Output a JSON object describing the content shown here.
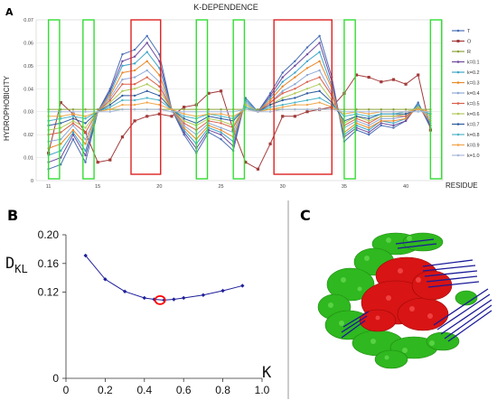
{
  "panels": {
    "a_letter": "A",
    "b_letter": "B",
    "c_letter": "C"
  },
  "colors": {
    "green_box": "#33dd33",
    "red_box": "#dd2222",
    "b_curve": "#1f1f9a",
    "b_marker": "#ff0000",
    "c_green": "#33bb22",
    "c_red": "#dd1111",
    "c_blue": "#1a1a99"
  },
  "chart_data": [
    {
      "type": "line",
      "title": "K-DEPENDENCE",
      "xlabel": "RESIDUE",
      "ylabel": "HYDROPHOBICITY",
      "xlim": [
        10,
        43
      ],
      "ylim": [
        0,
        0.07
      ],
      "y_ticks": [
        "0",
        "0.01",
        "0.02",
        "0.03",
        "0.04",
        "0.05",
        "0.06",
        "0.07"
      ],
      "x_ticks": [
        "11",
        "15",
        "20",
        "25",
        "30",
        "35",
        "40"
      ],
      "x_tick_values": [
        11,
        15,
        20,
        25,
        30,
        35,
        40
      ],
      "y_tick_values": [
        0,
        0.01,
        0.02,
        0.03,
        0.04,
        0.05,
        0.06,
        0.07
      ],
      "green_boxes": [
        [
          11,
          11.9
        ],
        [
          13.8,
          14.7
        ],
        [
          23,
          23.9
        ],
        [
          26,
          26.9
        ],
        [
          35,
          35.9
        ],
        [
          42,
          42.9
        ]
      ],
      "red_boxes": [
        [
          17.7,
          20.1
        ],
        [
          29.3,
          34
        ]
      ],
      "x": [
        11,
        12,
        13,
        14,
        15,
        16,
        17,
        18,
        19,
        20,
        21,
        22,
        23,
        24,
        25,
        26,
        27,
        28,
        29,
        30,
        31,
        32,
        33,
        34,
        35,
        36,
        37,
        38,
        39,
        40,
        41,
        42
      ],
      "series": [
        {
          "name": "T",
          "color": "#4a6fb5",
          "values": [
            0.005,
            0.007,
            0.018,
            0.008,
            0.03,
            0.04,
            0.055,
            0.057,
            0.063,
            0.055,
            0.031,
            0.02,
            0.012,
            0.021,
            0.018,
            0.013,
            0.036,
            0.03,
            0.038,
            0.047,
            0.052,
            0.058,
            0.063,
            0.045,
            0.017,
            0.022,
            0.02,
            0.024,
            0.023,
            0.026,
            0.034,
            0.023
          ]
        },
        {
          "name": "O",
          "color": "#a33b3b",
          "values": [
            0.012,
            0.034,
            0.029,
            0.021,
            0.008,
            0.009,
            0.019,
            0.026,
            0.028,
            0.029,
            0.028,
            0.032,
            0.033,
            0.038,
            0.039,
            0.022,
            0.008,
            0.005,
            0.016,
            0.028,
            0.028,
            0.03,
            0.031,
            0.032,
            0.038,
            0.046,
            0.045,
            0.043,
            0.044,
            0.042,
            0.046,
            0.022
          ]
        },
        {
          "name": "R",
          "color": "#8aa33a",
          "values": [
            0.031,
            0.031,
            0.031,
            0.031,
            0.031,
            0.031,
            0.031,
            0.031,
            0.031,
            0.031,
            0.031,
            0.031,
            0.031,
            0.031,
            0.031,
            0.031,
            0.031,
            0.031,
            0.031,
            0.031,
            0.031,
            0.031,
            0.031,
            0.031,
            0.031,
            0.031,
            0.031,
            0.031,
            0.031,
            0.031,
            0.031,
            0.031
          ]
        },
        {
          "name": "k=0.1",
          "color": "#6e4a9e",
          "values": [
            0.008,
            0.01,
            0.02,
            0.011,
            0.03,
            0.039,
            0.052,
            0.054,
            0.06,
            0.052,
            0.031,
            0.021,
            0.014,
            0.022,
            0.02,
            0.015,
            0.035,
            0.03,
            0.037,
            0.045,
            0.05,
            0.055,
            0.06,
            0.043,
            0.019,
            0.023,
            0.021,
            0.025,
            0.024,
            0.026,
            0.033,
            0.024
          ]
        },
        {
          "name": "k=0.2",
          "color": "#3fa6c7",
          "values": [
            0.011,
            0.013,
            0.021,
            0.013,
            0.03,
            0.038,
            0.05,
            0.051,
            0.056,
            0.049,
            0.031,
            0.022,
            0.016,
            0.023,
            0.021,
            0.017,
            0.035,
            0.03,
            0.036,
            0.043,
            0.047,
            0.052,
            0.056,
            0.041,
            0.02,
            0.024,
            0.022,
            0.026,
            0.025,
            0.027,
            0.033,
            0.025
          ]
        },
        {
          "name": "k=0.3",
          "color": "#e8892a",
          "values": [
            0.014,
            0.016,
            0.022,
            0.016,
            0.03,
            0.037,
            0.047,
            0.048,
            0.052,
            0.046,
            0.031,
            0.023,
            0.018,
            0.024,
            0.022,
            0.019,
            0.034,
            0.03,
            0.035,
            0.041,
            0.045,
            0.049,
            0.052,
            0.04,
            0.021,
            0.025,
            0.023,
            0.026,
            0.026,
            0.027,
            0.032,
            0.026
          ]
        },
        {
          "name": "k=0.4",
          "color": "#8fa9d6",
          "values": [
            0.017,
            0.018,
            0.024,
            0.018,
            0.03,
            0.036,
            0.044,
            0.045,
            0.048,
            0.043,
            0.031,
            0.024,
            0.02,
            0.025,
            0.023,
            0.021,
            0.034,
            0.03,
            0.034,
            0.039,
            0.042,
            0.046,
            0.048,
            0.038,
            0.023,
            0.026,
            0.024,
            0.027,
            0.027,
            0.028,
            0.032,
            0.027
          ]
        },
        {
          "name": "k=0.5",
          "color": "#d9604a",
          "values": [
            0.02,
            0.021,
            0.025,
            0.021,
            0.03,
            0.035,
            0.042,
            0.042,
            0.045,
            0.041,
            0.031,
            0.025,
            0.022,
            0.026,
            0.025,
            0.023,
            0.033,
            0.03,
            0.034,
            0.038,
            0.04,
            0.043,
            0.045,
            0.037,
            0.024,
            0.027,
            0.025,
            0.028,
            0.028,
            0.028,
            0.032,
            0.028
          ]
        },
        {
          "name": "k=0.6",
          "color": "#b0c95a",
          "values": [
            0.022,
            0.023,
            0.026,
            0.023,
            0.03,
            0.034,
            0.039,
            0.04,
            0.042,
            0.039,
            0.031,
            0.026,
            0.024,
            0.027,
            0.026,
            0.024,
            0.033,
            0.03,
            0.033,
            0.036,
            0.038,
            0.04,
            0.042,
            0.035,
            0.025,
            0.028,
            0.026,
            0.028,
            0.028,
            0.029,
            0.032,
            0.028
          ]
        },
        {
          "name": "k=0.7",
          "color": "#2f5d9e",
          "values": [
            0.024,
            0.025,
            0.027,
            0.025,
            0.03,
            0.033,
            0.037,
            0.037,
            0.039,
            0.037,
            0.031,
            0.027,
            0.025,
            0.028,
            0.027,
            0.026,
            0.032,
            0.03,
            0.033,
            0.035,
            0.036,
            0.038,
            0.039,
            0.034,
            0.026,
            0.028,
            0.027,
            0.029,
            0.029,
            0.029,
            0.031,
            0.029
          ]
        },
        {
          "name": "k=0.8",
          "color": "#4fb6c9",
          "values": [
            0.026,
            0.027,
            0.028,
            0.027,
            0.03,
            0.032,
            0.035,
            0.035,
            0.036,
            0.035,
            0.031,
            0.028,
            0.027,
            0.029,
            0.028,
            0.027,
            0.032,
            0.03,
            0.032,
            0.033,
            0.034,
            0.035,
            0.036,
            0.033,
            0.028,
            0.029,
            0.028,
            0.029,
            0.029,
            0.03,
            0.031,
            0.029
          ]
        },
        {
          "name": "k=0.9",
          "color": "#f0a64a",
          "values": [
            0.028,
            0.028,
            0.029,
            0.028,
            0.03,
            0.031,
            0.033,
            0.033,
            0.034,
            0.033,
            0.031,
            0.029,
            0.028,
            0.029,
            0.029,
            0.028,
            0.031,
            0.03,
            0.031,
            0.032,
            0.033,
            0.033,
            0.034,
            0.032,
            0.029,
            0.03,
            0.029,
            0.03,
            0.03,
            0.03,
            0.031,
            0.03
          ]
        },
        {
          "name": "k=1.0",
          "color": "#a9b9dd",
          "values": [
            0.03,
            0.03,
            0.03,
            0.03,
            0.03,
            0.03,
            0.031,
            0.031,
            0.031,
            0.031,
            0.03,
            0.03,
            0.03,
            0.03,
            0.03,
            0.03,
            0.031,
            0.03,
            0.03,
            0.031,
            0.031,
            0.031,
            0.031,
            0.031,
            0.03,
            0.03,
            0.03,
            0.03,
            0.03,
            0.03,
            0.03,
            0.03
          ]
        }
      ]
    },
    {
      "type": "line",
      "title": "",
      "ylabel_main": "D",
      "ylabel_sub": "KL",
      "xlabel": "K",
      "xlim": [
        0,
        1.0
      ],
      "ylim": [
        0,
        0.2
      ],
      "x_ticks": [
        "0",
        "0.2",
        "0.4",
        "0.6",
        "0.8",
        "1.0"
      ],
      "x_tick_values": [
        0,
        0.2,
        0.4,
        0.6,
        0.8,
        1.0
      ],
      "y_ticks": [
        "0",
        "0.12",
        "0.16",
        "0.20"
      ],
      "y_tick_values": [
        0,
        0.12,
        0.16,
        0.2
      ],
      "x": [
        0.1,
        0.2,
        0.3,
        0.4,
        0.45,
        0.5,
        0.55,
        0.6,
        0.7,
        0.8,
        0.9
      ],
      "values": [
        0.171,
        0.138,
        0.121,
        0.112,
        0.11,
        0.109,
        0.11,
        0.112,
        0.116,
        0.122,
        0.129
      ],
      "highlight": {
        "x": 0.48,
        "y": 0.109
      }
    }
  ]
}
